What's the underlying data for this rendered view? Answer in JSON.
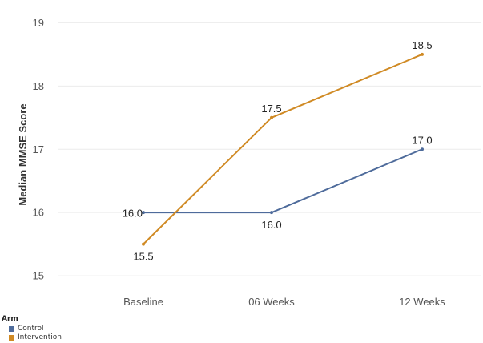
{
  "chart_data": {
    "type": "line",
    "categories": [
      "Baseline",
      "06 Weeks",
      "12 Weeks"
    ],
    "series": [
      {
        "name": "Control",
        "values": [
          16.0,
          16.0,
          17.0
        ],
        "labels": [
          "16.0",
          "16.0",
          "17.0"
        ],
        "color": "#4E6B9B"
      },
      {
        "name": "Intervention",
        "values": [
          15.5,
          17.5,
          18.5
        ],
        "labels": [
          "15.5",
          "17.5",
          "18.5"
        ],
        "color": "#D08A24"
      }
    ],
    "title": "",
    "xlabel": "",
    "ylabel": "Median MMSE Score",
    "ylim": [
      14.9,
      19.1
    ],
    "yticks": [
      "15",
      "16",
      "17",
      "18",
      "19"
    ],
    "grid": true,
    "legend": {
      "title": "Arm",
      "position": "bottom-left"
    }
  }
}
